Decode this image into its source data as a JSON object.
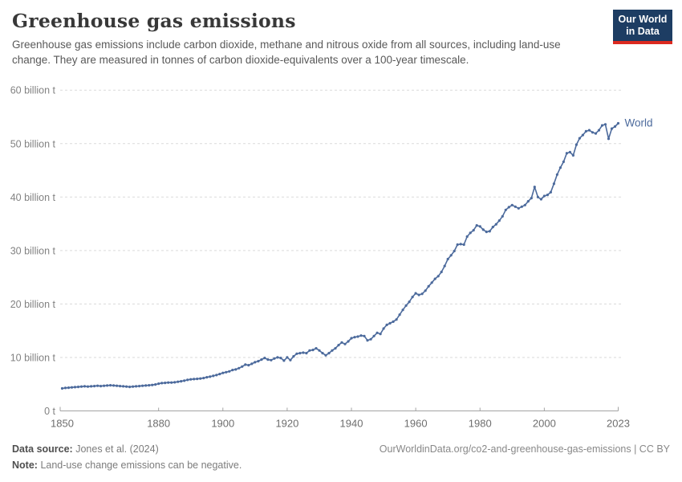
{
  "header": {
    "title": "Greenhouse gas emissions",
    "subtitle": "Greenhouse gas emissions include carbon dioxide, methane and nitrous oxide from all sources, including land-use change. They are measured in tonnes of carbon dioxide-equivalents over a 100-year timescale.",
    "logo": {
      "line1": "Our World",
      "line2": "in Data",
      "bg_color": "#1d3d63",
      "accent_color": "#dc2a20"
    }
  },
  "chart_data": {
    "type": "line",
    "title": "Greenhouse gas emissions",
    "unit": "billion t CO2-equivalents",
    "xlim": [
      1850,
      2023
    ],
    "ylim": [
      0,
      60
    ],
    "grid": "horizontal dashed",
    "legend_position": "end-of-line label",
    "x_ticks": [
      1850,
      1880,
      1900,
      1920,
      1940,
      1960,
      1980,
      2000,
      2023
    ],
    "y_ticks": [
      {
        "value": 0,
        "label": "0 t"
      },
      {
        "value": 10,
        "label": "10 billion t"
      },
      {
        "value": 20,
        "label": "20 billion t"
      },
      {
        "value": 30,
        "label": "30 billion t"
      },
      {
        "value": 40,
        "label": "40 billion t"
      },
      {
        "value": 50,
        "label": "50 billion t"
      },
      {
        "value": 60,
        "label": "60 billion t"
      }
    ],
    "grid_color": "#dadada",
    "axis_color": "#a3a3a3",
    "y_label_color": "#828282",
    "x_label_color": "#6e6e6e",
    "series": [
      {
        "name": "World",
        "color": "#4C6A9C",
        "marker": "dot",
        "x": [
          1850,
          1851,
          1852,
          1853,
          1854,
          1855,
          1856,
          1857,
          1858,
          1859,
          1860,
          1861,
          1862,
          1863,
          1864,
          1865,
          1866,
          1867,
          1868,
          1869,
          1870,
          1871,
          1872,
          1873,
          1874,
          1875,
          1876,
          1877,
          1878,
          1879,
          1880,
          1881,
          1882,
          1883,
          1884,
          1885,
          1886,
          1887,
          1888,
          1889,
          1890,
          1891,
          1892,
          1893,
          1894,
          1895,
          1896,
          1897,
          1898,
          1899,
          1900,
          1901,
          1902,
          1903,
          1904,
          1905,
          1906,
          1907,
          1908,
          1909,
          1910,
          1911,
          1912,
          1913,
          1914,
          1915,
          1916,
          1917,
          1918,
          1919,
          1920,
          1921,
          1922,
          1923,
          1924,
          1925,
          1926,
          1927,
          1928,
          1929,
          1930,
          1931,
          1932,
          1933,
          1934,
          1935,
          1936,
          1937,
          1938,
          1939,
          1940,
          1941,
          1942,
          1943,
          1944,
          1945,
          1946,
          1947,
          1948,
          1949,
          1950,
          1951,
          1952,
          1953,
          1954,
          1955,
          1956,
          1957,
          1958,
          1959,
          1960,
          1961,
          1962,
          1963,
          1964,
          1965,
          1966,
          1967,
          1968,
          1969,
          1970,
          1971,
          1972,
          1973,
          1974,
          1975,
          1976,
          1977,
          1978,
          1979,
          1980,
          1981,
          1982,
          1983,
          1984,
          1985,
          1986,
          1987,
          1988,
          1989,
          1990,
          1991,
          1992,
          1993,
          1994,
          1995,
          1996,
          1997,
          1998,
          1999,
          2000,
          2001,
          2002,
          2003,
          2004,
          2005,
          2006,
          2007,
          2008,
          2009,
          2010,
          2011,
          2012,
          2013,
          2014,
          2015,
          2016,
          2017,
          2018,
          2019,
          2020,
          2021,
          2022,
          2023
        ],
        "values": [
          4.2,
          4.3,
          4.35,
          4.4,
          4.45,
          4.5,
          4.55,
          4.6,
          4.55,
          4.6,
          4.65,
          4.7,
          4.65,
          4.7,
          4.75,
          4.8,
          4.75,
          4.7,
          4.65,
          4.6,
          4.55,
          4.5,
          4.55,
          4.6,
          4.65,
          4.7,
          4.75,
          4.8,
          4.85,
          4.95,
          5.1,
          5.2,
          5.25,
          5.3,
          5.3,
          5.35,
          5.45,
          5.55,
          5.65,
          5.8,
          5.9,
          5.95,
          6.0,
          6.05,
          6.15,
          6.3,
          6.4,
          6.55,
          6.7,
          6.9,
          7.1,
          7.25,
          7.4,
          7.65,
          7.75,
          8.0,
          8.3,
          8.65,
          8.55,
          8.8,
          9.1,
          9.3,
          9.6,
          9.9,
          9.6,
          9.5,
          9.8,
          10.0,
          9.9,
          9.4,
          10.0,
          9.5,
          10.2,
          10.7,
          10.8,
          10.9,
          10.8,
          11.3,
          11.4,
          11.7,
          11.3,
          10.8,
          10.4,
          10.8,
          11.3,
          11.7,
          12.3,
          12.8,
          12.5,
          13.0,
          13.6,
          13.8,
          13.9,
          14.1,
          14.0,
          13.2,
          13.4,
          14.0,
          14.6,
          14.4,
          15.4,
          16.1,
          16.4,
          16.7,
          17.1,
          18.0,
          18.9,
          19.7,
          20.4,
          21.3,
          22.0,
          21.7,
          21.9,
          22.5,
          23.3,
          24.0,
          24.7,
          25.2,
          26.0,
          27.1,
          28.4,
          29.1,
          29.9,
          31.1,
          31.2,
          31.1,
          32.6,
          33.3,
          33.8,
          34.7,
          34.5,
          33.9,
          33.5,
          33.6,
          34.4,
          34.9,
          35.6,
          36.4,
          37.6,
          38.1,
          38.5,
          38.2,
          37.9,
          38.2,
          38.5,
          39.2,
          39.8,
          41.9,
          40.0,
          39.6,
          40.2,
          40.4,
          40.9,
          42.5,
          44.2,
          45.5,
          46.6,
          48.2,
          48.4,
          47.8,
          49.8,
          51.0,
          51.6,
          52.3,
          52.5,
          52.1,
          51.9,
          52.5,
          53.4,
          53.6,
          50.9,
          52.8,
          53.2,
          53.8
        ]
      }
    ]
  },
  "footer": {
    "source_label": "Data source:",
    "source_text": "Jones et al. (2024)",
    "note_label": "Note:",
    "note_text": "Land-use change emissions can be negative.",
    "url_text": "OurWorldinData.org/co2-and-greenhouse-gas-emissions | CC BY"
  }
}
